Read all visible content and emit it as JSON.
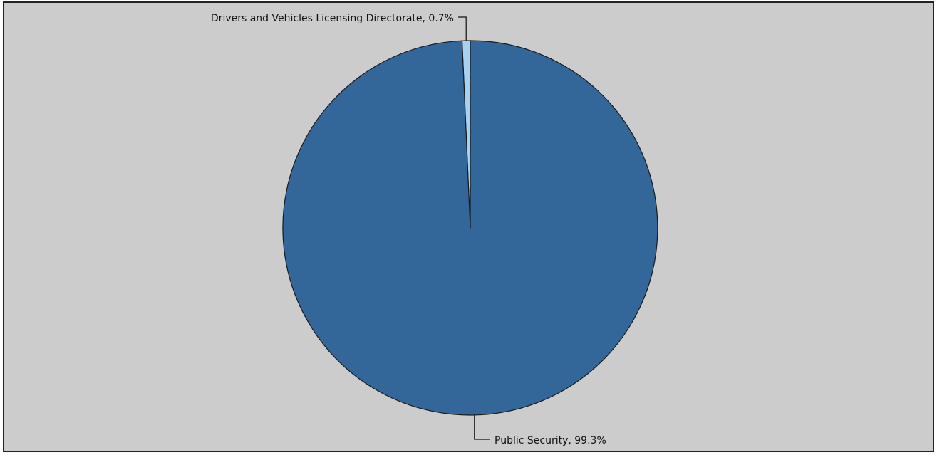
{
  "chart_data": {
    "type": "pie",
    "slices": [
      {
        "label": "Drivers and Vehicles Licensing Directorate",
        "value": 0.7,
        "display": "Drivers and Vehicles Licensing Directorate, 0.7%",
        "color": "#a8d0f0"
      },
      {
        "label": "Public Security",
        "value": 99.3,
        "display": "Public Security, 99.3%",
        "color": "#336699"
      }
    ],
    "background": "#cccccc",
    "outline_color": "#1a1a1a"
  }
}
